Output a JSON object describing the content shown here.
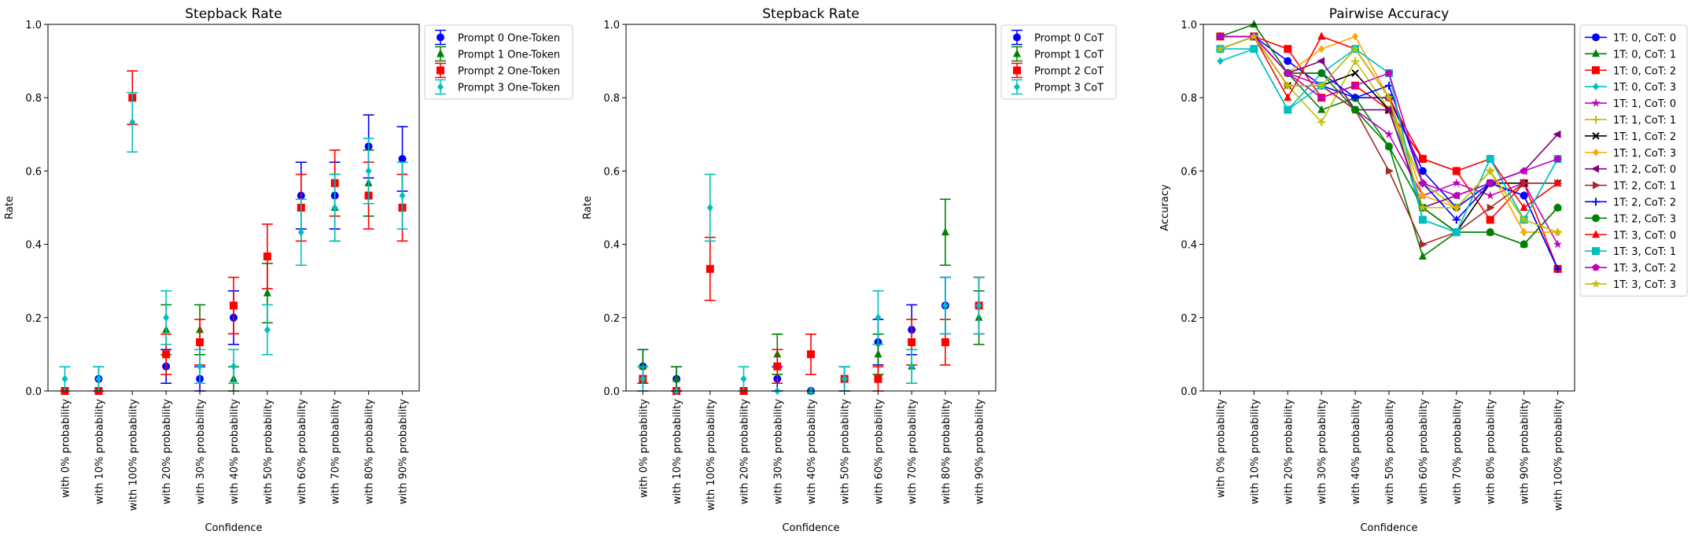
{
  "colors": {
    "blue": "#0000ff",
    "green": "#008000",
    "red": "#ff0000",
    "cyan": "#00bfbf",
    "magenta": "#bf00bf",
    "olive": "#bfbf00",
    "black": "#000000",
    "orange": "#ffa500",
    "purple": "#800080",
    "brown": "#a52a2a"
  },
  "chart_data": [
    {
      "type": "errorbar-scatter",
      "title": "Stepback Rate",
      "xlabel": "Confidence",
      "ylabel": "Rate",
      "ylim": [
        0,
        1
      ],
      "yticks": [
        "0.0",
        "0.2",
        "0.4",
        "0.6",
        "0.8",
        "1.0"
      ],
      "legend_position": "outside-upper-right",
      "categories": [
        "with 0% probability",
        "with 10% probability",
        "with 100% probability",
        "with 20% probability",
        "with 30% probability",
        "with 40% probability",
        "with 50% probability",
        "with 60% probability",
        "with 70% probability",
        "with 80% probability",
        "with 90% probability"
      ],
      "series": [
        {
          "name": "Prompt 0 One-Token",
          "color": "#0000ff",
          "marker": "circle",
          "values": [
            0.0,
            0.033,
            null,
            0.067,
            0.033,
            0.2,
            null,
            0.533,
            0.533,
            0.667,
            0.633
          ],
          "errors": [
            0.0,
            0.033,
            null,
            0.046,
            0.033,
            0.073,
            null,
            0.091,
            0.091,
            0.086,
            0.088
          ]
        },
        {
          "name": "Prompt 1 One-Token",
          "color": "#008000",
          "marker": "triangle",
          "values": [
            0.0,
            0.0,
            null,
            0.167,
            0.167,
            0.033,
            0.267,
            null,
            0.5,
            0.567,
            null
          ],
          "errors": [
            0.0,
            0.0,
            null,
            0.068,
            0.068,
            0.033,
            0.081,
            null,
            0.091,
            0.09,
            null
          ]
        },
        {
          "name": "Prompt 2 One-Token",
          "color": "#ff0000",
          "marker": "square",
          "values": [
            0.0,
            0.0,
            0.8,
            0.1,
            0.133,
            0.233,
            0.367,
            0.5,
            0.567,
            0.533,
            0.5
          ],
          "errors": [
            0.0,
            0.0,
            0.073,
            0.055,
            0.062,
            0.077,
            0.088,
            0.091,
            0.09,
            0.091,
            0.091
          ]
        },
        {
          "name": "Prompt 3 One-Token",
          "color": "#00bfbf",
          "marker": "diamond",
          "values": [
            0.033,
            0.033,
            0.733,
            0.2,
            0.067,
            0.067,
            0.167,
            0.433,
            0.5,
            0.6,
            0.533
          ],
          "errors": [
            0.033,
            0.033,
            0.081,
            0.073,
            0.046,
            0.046,
            0.068,
            0.09,
            0.091,
            0.089,
            0.091
          ]
        }
      ]
    },
    {
      "type": "errorbar-scatter",
      "title": "Stepback Rate",
      "xlabel": "Confidence",
      "ylabel": "Rate",
      "ylim": [
        0,
        1
      ],
      "yticks": [
        "0.0",
        "0.2",
        "0.4",
        "0.6",
        "0.8",
        "1.0"
      ],
      "legend_position": "outside-upper-right",
      "categories": [
        "with 0% probability",
        "with 10% probability",
        "with 100% probability",
        "with 20% probability",
        "with 30% probability",
        "with 40% probability",
        "with 50% probability",
        "with 60% probability",
        "with 70% probability",
        "with 80% probability",
        "with 90% probability"
      ],
      "series": [
        {
          "name": "Prompt 0 CoT",
          "color": "#0000ff",
          "marker": "circle",
          "values": [
            0.067,
            0.033,
            null,
            0.0,
            0.033,
            0.0,
            0.033,
            0.133,
            0.167,
            0.233,
            0.233
          ],
          "errors": [
            0.046,
            0.033,
            null,
            0.0,
            0.033,
            0.0,
            0.033,
            0.062,
            0.068,
            0.077,
            0.077
          ]
        },
        {
          "name": "Prompt 1 CoT",
          "color": "#008000",
          "marker": "triangle",
          "values": [
            0.067,
            0.033,
            null,
            0.0,
            0.1,
            0.0,
            0.033,
            0.1,
            0.067,
            0.433,
            0.2
          ],
          "errors": [
            0.046,
            0.033,
            null,
            0.0,
            0.055,
            0.0,
            0.033,
            0.055,
            0.046,
            0.09,
            0.073
          ]
        },
        {
          "name": "Prompt 2 CoT",
          "color": "#ff0000",
          "marker": "square",
          "values": [
            0.033,
            0.0,
            0.333,
            0.0,
            0.067,
            0.1,
            0.033,
            0.033,
            0.133,
            0.133,
            0.233
          ],
          "errors": [
            0.033,
            0.0,
            0.086,
            0.0,
            0.046,
            0.055,
            0.033,
            0.033,
            0.062,
            0.062,
            0.077
          ]
        },
        {
          "name": "Prompt 3 CoT",
          "color": "#00bfbf",
          "marker": "diamond",
          "values": [
            0.033,
            0.0,
            0.5,
            0.033,
            0.0,
            0.0,
            0.033,
            0.2,
            0.067,
            0.233,
            0.233
          ],
          "errors": [
            0.033,
            0.0,
            0.091,
            0.033,
            0.0,
            0.0,
            0.033,
            0.073,
            0.046,
            0.077,
            0.077
          ]
        }
      ]
    },
    {
      "type": "line",
      "title": "Pairwise Accuracy",
      "xlabel": "Confidence",
      "ylabel": "Accuracy",
      "ylim": [
        0,
        1
      ],
      "yticks": [
        "0.0",
        "0.2",
        "0.4",
        "0.6",
        "0.8",
        "1.0"
      ],
      "legend_position": "outside-upper-right",
      "categories": [
        "with 0% probability",
        "with 10% probability",
        "with 20% probability",
        "with 30% probability",
        "with 40% probability",
        "with 50% probability",
        "with 60% probability",
        "with 70% probability",
        "with 80% probability",
        "with 90% probability",
        "with 100% probability"
      ],
      "series": [
        {
          "name": "1T: 0, CoT: 0",
          "color": "#0000ff",
          "marker": "circle",
          "values": [
            0.933,
            0.967,
            0.9,
            0.833,
            0.8,
            0.8,
            0.6,
            0.5,
            0.567,
            0.533,
            0.333
          ]
        },
        {
          "name": "1T: 0, CoT: 1",
          "color": "#008000",
          "marker": "triangle",
          "values": [
            0.967,
            1.0,
            0.867,
            0.767,
            0.8,
            0.667,
            0.367,
            0.433,
            0.433,
            0.4,
            0.5
          ]
        },
        {
          "name": "1T: 0, CoT: 2",
          "color": "#ff0000",
          "marker": "square",
          "values": [
            0.967,
            0.967,
            0.933,
            0.8,
            0.833,
            0.767,
            0.633,
            0.6,
            0.467,
            0.567,
            0.333
          ]
        },
        {
          "name": "1T: 0, CoT: 3",
          "color": "#00bfbf",
          "marker": "diamond",
          "values": [
            0.9,
            0.933,
            0.767,
            0.867,
            0.933,
            0.8,
            0.467,
            0.433,
            0.633,
            0.467,
            0.633
          ]
        },
        {
          "name": "1T: 1, CoT: 0",
          "color": "#bf00bf",
          "marker": "star",
          "values": [
            0.933,
            0.967,
            0.867,
            0.833,
            0.767,
            0.7,
            0.533,
            0.567,
            0.533,
            0.567,
            0.4
          ]
        },
        {
          "name": "1T: 1, CoT: 1",
          "color": "#bfbf00",
          "marker": "plus",
          "values": [
            0.933,
            0.967,
            0.833,
            0.733,
            0.9,
            0.767,
            0.567,
            0.5,
            0.6,
            0.433,
            0.433
          ]
        },
        {
          "name": "1T: 1, CoT: 2",
          "color": "#000000",
          "marker": "x",
          "values": [
            0.967,
            0.967,
            0.833,
            0.833,
            0.867,
            0.767,
            0.5,
            0.433,
            0.567,
            0.567,
            0.567
          ]
        },
        {
          "name": "1T: 1, CoT: 3",
          "color": "#ffa500",
          "marker": "diamond",
          "values": [
            0.933,
            0.967,
            0.867,
            0.933,
            0.967,
            0.8,
            0.533,
            0.5,
            0.6,
            0.433,
            0.433
          ]
        },
        {
          "name": "1T: 2, CoT: 0",
          "color": "#800080",
          "marker": "triangle-left",
          "values": [
            0.967,
            0.967,
            0.867,
            0.9,
            0.767,
            0.767,
            0.5,
            0.533,
            0.567,
            0.6,
            0.7
          ]
        },
        {
          "name": "1T: 2, CoT: 1",
          "color": "#a52a2a",
          "marker": "triangle-right",
          "values": [
            0.967,
            0.967,
            0.833,
            0.833,
            0.767,
            0.6,
            0.4,
            0.433,
            0.5,
            0.567,
            0.567
          ]
        },
        {
          "name": "1T: 2, CoT: 2",
          "color": "#0000ff",
          "marker": "plus",
          "values": [
            0.933,
            0.967,
            0.867,
            0.867,
            0.8,
            0.833,
            0.567,
            0.467,
            0.567,
            0.533,
            0.333
          ]
        },
        {
          "name": "1T: 2, CoT: 3",
          "color": "#008000",
          "marker": "circle",
          "values": [
            0.967,
            0.967,
            0.867,
            0.867,
            0.767,
            0.667,
            0.5,
            0.433,
            0.433,
            0.4,
            0.5
          ]
        },
        {
          "name": "1T: 3, CoT: 0",
          "color": "#ff0000",
          "marker": "triangle",
          "values": [
            0.967,
            0.967,
            0.8,
            0.967,
            0.933,
            0.8,
            0.633,
            0.6,
            0.633,
            0.5,
            0.567
          ]
        },
        {
          "name": "1T: 3, CoT: 1",
          "color": "#00bfbf",
          "marker": "square",
          "values": [
            0.933,
            0.933,
            0.767,
            0.833,
            0.933,
            0.867,
            0.467,
            0.433,
            0.633,
            0.467,
            0.633
          ]
        },
        {
          "name": "1T: 3, CoT: 2",
          "color": "#bf00bf",
          "marker": "pentagon",
          "values": [
            0.967,
            0.967,
            0.867,
            0.8,
            0.833,
            0.867,
            0.567,
            0.533,
            0.567,
            0.6,
            0.633
          ]
        },
        {
          "name": "1T: 3, CoT: 3",
          "color": "#bfbf00",
          "marker": "star",
          "values": [
            0.933,
            0.967,
            0.833,
            0.833,
            0.933,
            0.8,
            0.5,
            0.5,
            0.6,
            0.467,
            0.433
          ]
        }
      ]
    }
  ]
}
